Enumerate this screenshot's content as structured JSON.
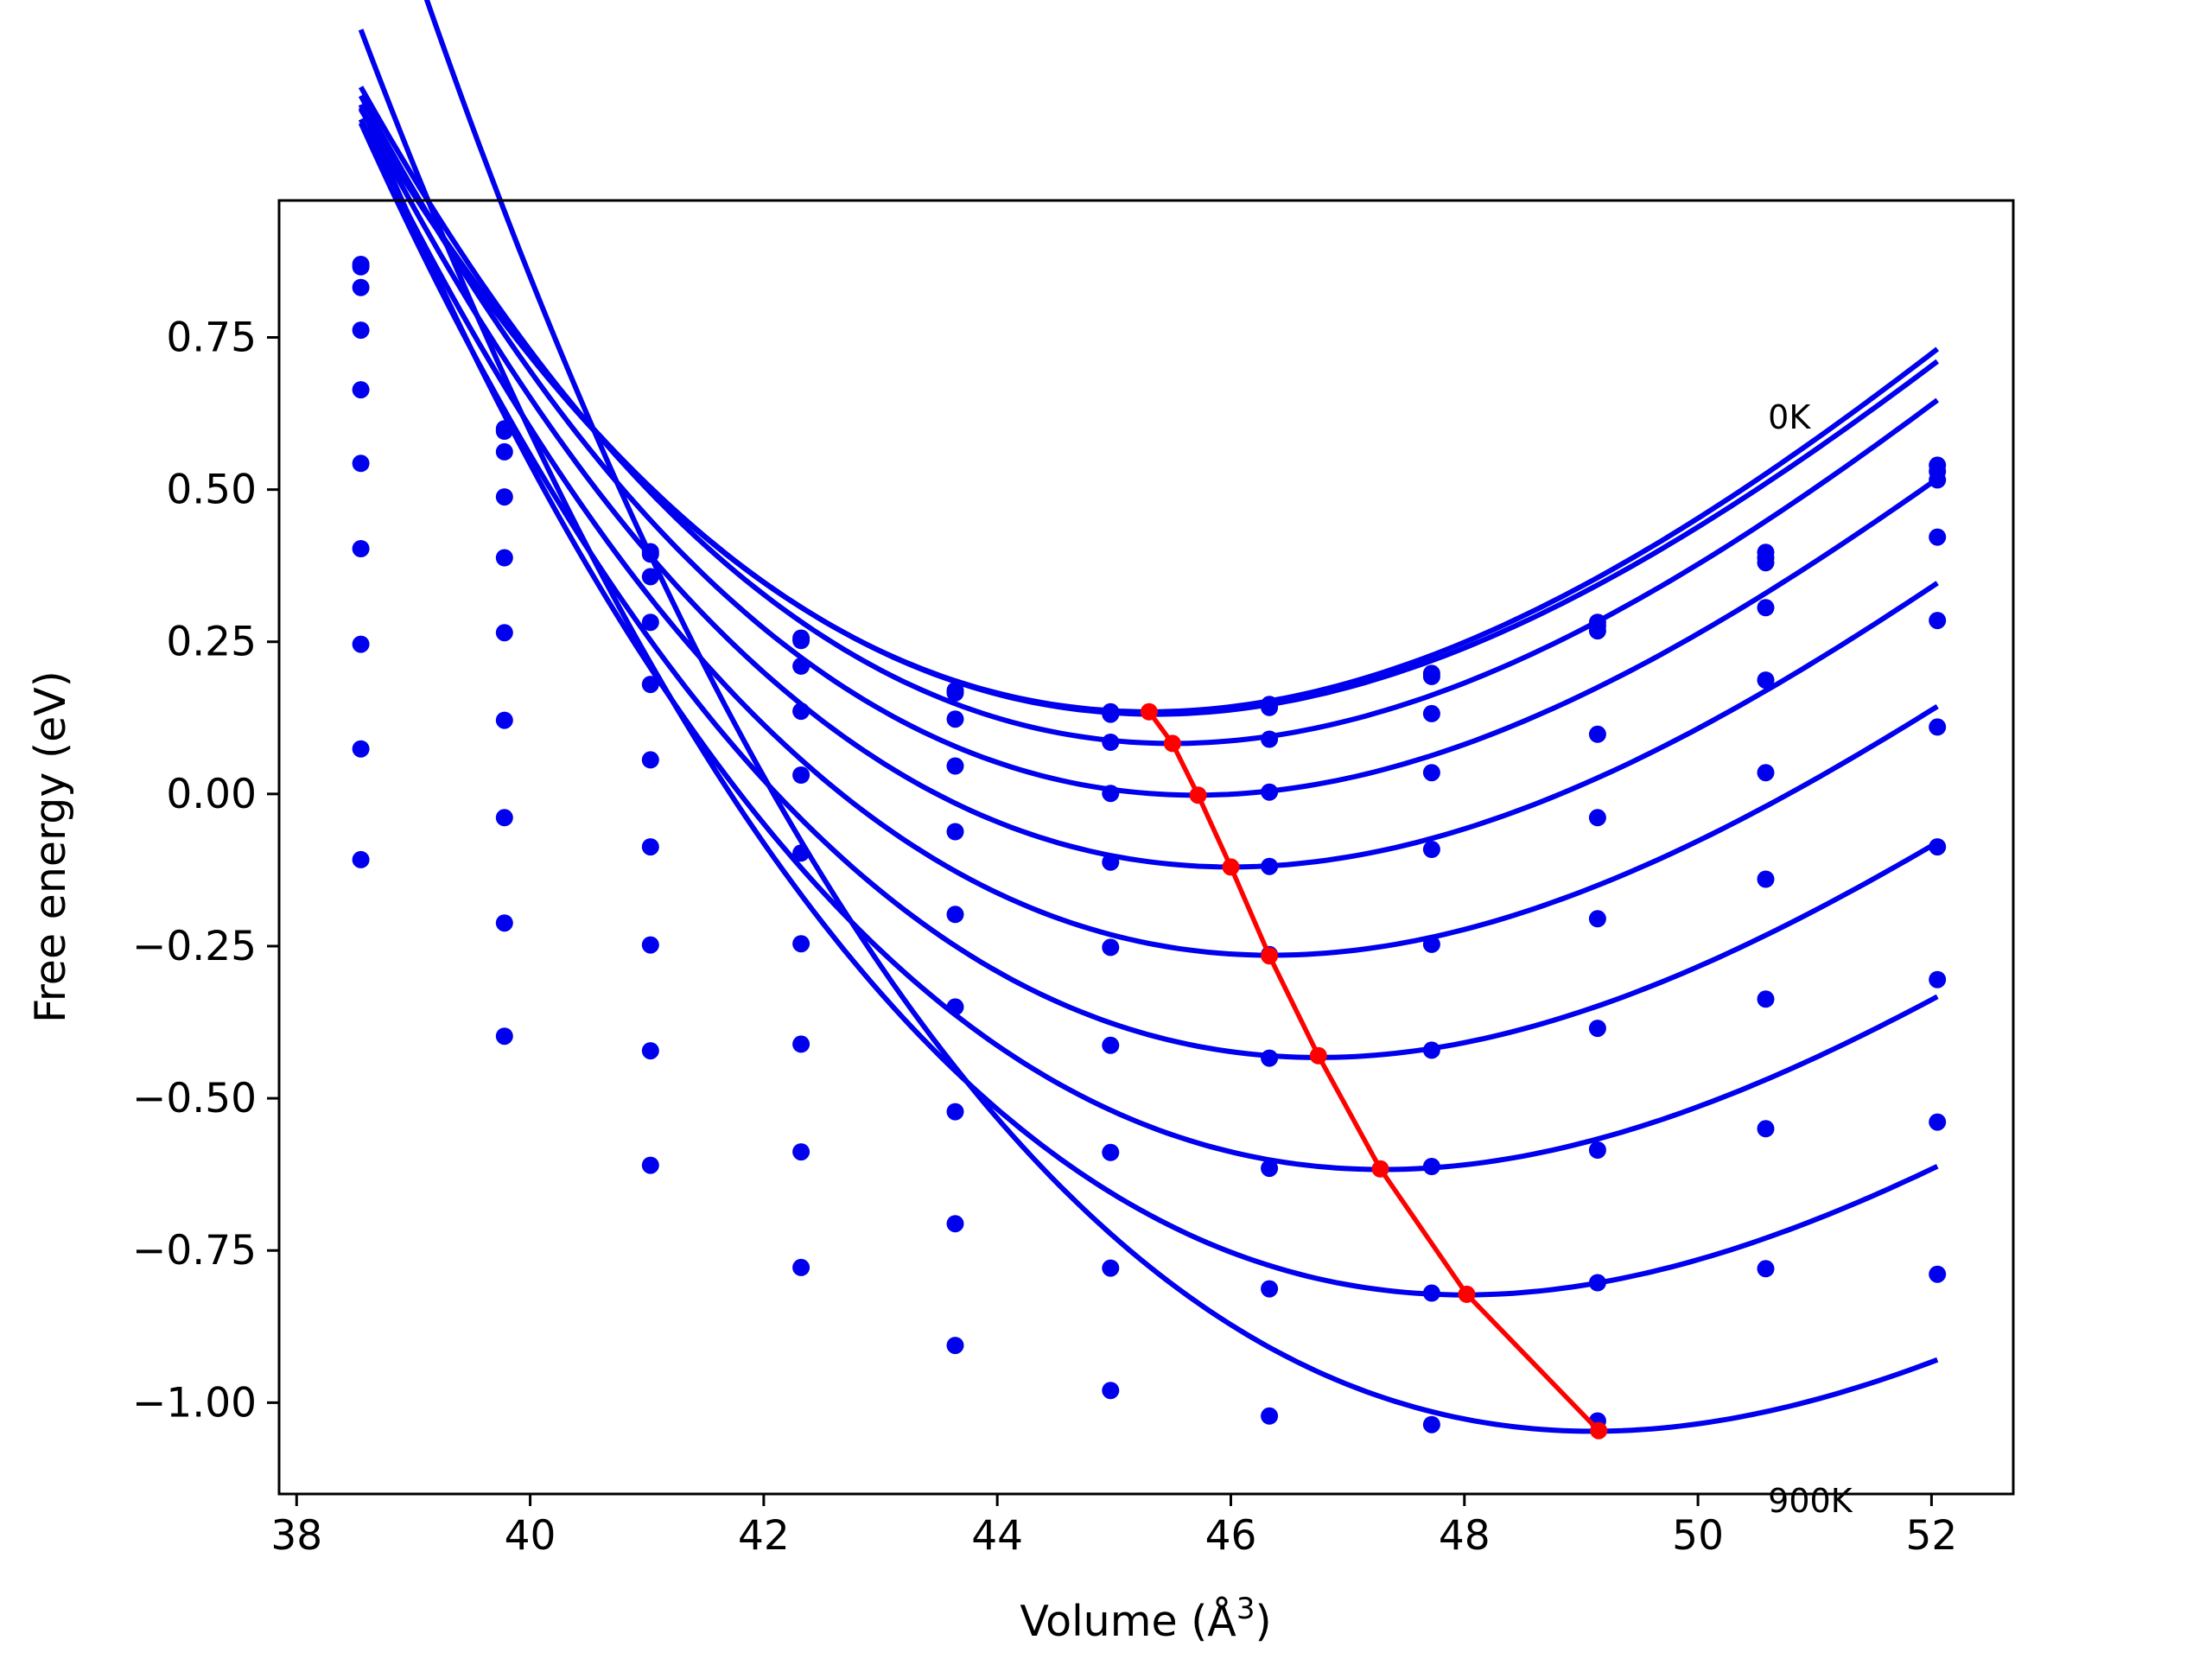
{
  "chart_data": {
    "type": "scatter",
    "title": "",
    "xlabel": "Volume (Å",
    "xlabel_superscript": "3",
    "xlabel_suffix": ")",
    "ylabel": "Free energy (eV)",
    "xlim": [
      37.85,
      52.7
    ],
    "ylim": [
      -1.15,
      0.975
    ],
    "x_ticks": [
      38,
      40,
      42,
      44,
      46,
      48,
      50,
      52
    ],
    "x_tick_labels": [
      "38",
      "40",
      "42",
      "44",
      "46",
      "48",
      "50",
      "52"
    ],
    "y_ticks": [
      0.75,
      0.5,
      0.25,
      0.0,
      -0.25,
      -0.5,
      -0.75,
      -1.0
    ],
    "y_tick_labels": [
      "0.75",
      "0.50",
      "0.25",
      "0.00",
      "−0.25",
      "−0.50",
      "−0.75",
      "−1.00"
    ],
    "grid": false,
    "annotations": [
      {
        "text": "0K",
        "x": 50.6,
        "y": 0.6
      },
      {
        "text": "900K",
        "x": 50.6,
        "y": -1.18
      }
    ],
    "colors": {
      "series": "#0000ee",
      "minimum_line": "#ff0000"
    },
    "volumes": [
      38.55,
      39.78,
      41.03,
      42.32,
      43.64,
      44.97,
      46.33,
      47.72,
      49.14,
      50.58,
      52.05
    ],
    "series": [
      {
        "points": [
          0.87,
          0.6,
          0.398,
          0.256,
          0.17,
          0.135,
          0.147,
          0.198,
          0.282,
          0.397,
          0.54
        ],
        "fit": {
          "e0": 0.135,
          "v0": 45.3,
          "k2": 0.0174,
          "k3": -0.00064
        }
      },
      {
        "points": [
          0.866,
          0.596,
          0.394,
          0.252,
          0.166,
          0.131,
          0.142,
          0.193,
          0.276,
          0.388,
          0.53
        ],
        "fit": {
          "e0": 0.131,
          "v0": 45.35,
          "k2": 0.0172,
          "k3": -0.00064
        }
      },
      {
        "points": [
          0.832,
          0.562,
          0.357,
          0.21,
          0.123,
          0.085,
          0.09,
          0.132,
          0.268,
          0.38,
          0.516
        ],
        "fit": {
          "e0": 0.083,
          "v0": 45.5,
          "k2": 0.0176,
          "k3": -0.00068
        }
      },
      {
        "points": [
          0.762,
          0.488,
          0.282,
          0.136,
          0.046,
          0.001,
          0.003,
          0.035,
          0.098,
          0.306,
          0.422
        ],
        "fit": {
          "e0": -0.002,
          "v0": 45.7,
          "k2": 0.0174,
          "k3": -0.00071
        }
      },
      {
        "points": [
          0.664,
          0.388,
          0.18,
          0.031,
          -0.062,
          -0.112,
          -0.119,
          -0.091,
          -0.039,
          0.187,
          0.285
        ],
        "fit": {
          "e0": -0.12,
          "v0": 46.0,
          "k2": 0.0171,
          "k3": -0.00072
        }
      },
      {
        "points": [
          0.543,
          0.265,
          0.056,
          -0.097,
          -0.198,
          -0.252,
          -0.264,
          -0.247,
          -0.205,
          0.035,
          0.11
        ],
        "fit": {
          "e0": -0.265,
          "v0": 46.35,
          "k2": 0.0168,
          "k3": -0.00074
        }
      },
      {
        "points": [
          0.403,
          0.121,
          -0.087,
          -0.246,
          -0.35,
          -0.413,
          -0.434,
          -0.421,
          -0.385,
          -0.14,
          -0.087
        ],
        "fit": {
          "e0": -0.433,
          "v0": 46.75,
          "k2": 0.0166,
          "k3": -0.00076
        }
      },
      {
        "points": [
          0.246,
          -0.039,
          -0.248,
          -0.411,
          -0.522,
          -0.589,
          -0.615,
          -0.612,
          -0.585,
          -0.337,
          -0.305
        ],
        "fit": {
          "e0": -0.617,
          "v0": 47.3,
          "k2": 0.0162,
          "k3": -0.00076
        }
      },
      {
        "points": [
          0.074,
          -0.212,
          -0.422,
          -0.588,
          -0.706,
          -0.779,
          -0.813,
          -0.82,
          -0.803,
          -0.55,
          -0.539
        ],
        "fit": {
          "e0": -0.823,
          "v0": 48.0,
          "k2": 0.016,
          "k3": -0.00077
        }
      },
      {
        "points": [
          -0.108,
          -0.398,
          -0.61,
          -0.778,
          -0.906,
          -0.98,
          -1.022,
          -1.036,
          -1.03,
          -0.78,
          -0.789
        ],
        "fit": {
          "e0": -1.047,
          "v0": 49.1,
          "k2": 0.0158,
          "k3": -0.00078
        }
      }
    ],
    "minimum_line": {
      "x": [
        45.3,
        45.5,
        45.72,
        46.0,
        46.33,
        46.75,
        47.28,
        48.02,
        49.15
      ],
      "y": [
        0.135,
        0.083,
        -0.002,
        -0.12,
        -0.266,
        -0.43,
        -0.616,
        -0.822,
        -1.046
      ]
    }
  }
}
